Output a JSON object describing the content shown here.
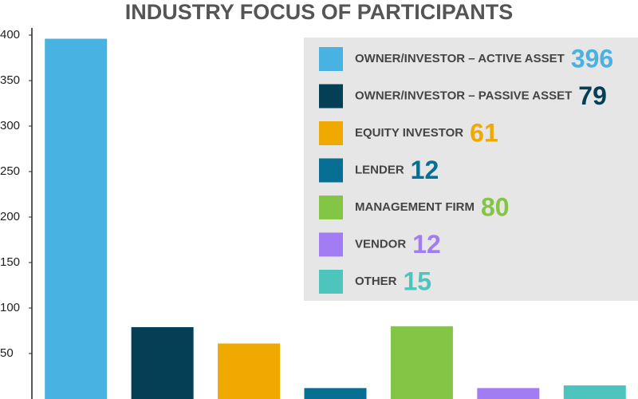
{
  "chart_data": {
    "type": "bar",
    "title": "INDUSTRY FOCUS OF PARTICIPANTS",
    "categories": [
      "OWNER/INVESTOR – ACTIVE ASSET",
      "OWNER/INVESTOR – PASSIVE ASSET",
      "EQUITY INVESTOR",
      "LENDER",
      "MANAGEMENT FIRM",
      "VENDOR",
      "OTHER"
    ],
    "values": [
      396,
      79,
      61,
      12,
      80,
      12,
      15
    ],
    "colors": [
      "#48b2e2",
      "#053f55",
      "#f0a900",
      "#066f93",
      "#83c544",
      "#a27cf2",
      "#4dc5bd"
    ],
    "ylim": [
      0,
      410
    ],
    "yticks": [
      50,
      100,
      150,
      200,
      250,
      300,
      350,
      400
    ],
    "legend": "upper right"
  }
}
